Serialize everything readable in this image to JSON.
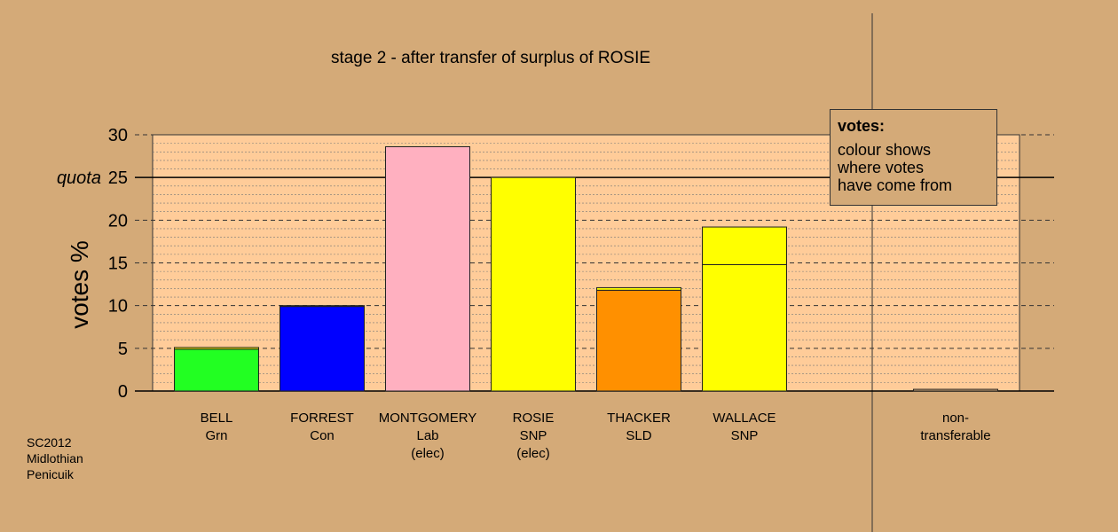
{
  "chart_data": {
    "type": "bar",
    "title": "stage 2 - after transfer of surplus of ROSIE",
    "ylabel": "votes %",
    "ylim": [
      0,
      30
    ],
    "yticks": [
      0,
      5,
      10,
      15,
      20,
      25,
      30
    ],
    "quota": {
      "label": "quota",
      "value": 25
    },
    "grid": true,
    "categories": [
      {
        "lines": [
          "BELL",
          "Grn"
        ]
      },
      {
        "lines": [
          "FORREST",
          "Con"
        ]
      },
      {
        "lines": [
          "MONTGOMERY",
          "Lab",
          "(elec)"
        ]
      },
      {
        "lines": [
          "ROSIE",
          "SNP",
          "(elec)"
        ]
      },
      {
        "lines": [
          "THACKER",
          "SLD"
        ]
      },
      {
        "lines": [
          "WALLACE",
          "SNP"
        ]
      },
      {
        "lines": [
          "non-",
          "transferable"
        ]
      }
    ],
    "bars": [
      {
        "segments": [
          {
            "value": 4.9,
            "color": "#22ff22"
          },
          {
            "value": 0.2,
            "color": "#ffff00"
          }
        ]
      },
      {
        "segments": [
          {
            "value": 9.9,
            "color": "#0000ff"
          },
          {
            "value": 0.1,
            "color": "#ffff00"
          }
        ]
      },
      {
        "segments": [
          {
            "value": 28.6,
            "color": "#ffb0c0"
          }
        ]
      },
      {
        "segments": [
          {
            "value": 25.0,
            "color": "#ffff00"
          }
        ]
      },
      {
        "segments": [
          {
            "value": 11.8,
            "color": "#ff9000"
          },
          {
            "value": 0.3,
            "color": "#ffff00"
          }
        ]
      },
      {
        "segments": [
          {
            "value": 14.8,
            "color": "#ffff00"
          },
          {
            "value": 4.4,
            "color": "#ffff00"
          }
        ]
      },
      {
        "segments": [
          {
            "value": 0.2,
            "color": "#d4aa78"
          }
        ]
      }
    ],
    "legend": {
      "title": "votes:",
      "lines": [
        "colour shows",
        "where votes",
        "have come from"
      ],
      "position": "top-right"
    }
  },
  "footnote": [
    "SC2012",
    "Midlothian",
    "Penicuik"
  ]
}
